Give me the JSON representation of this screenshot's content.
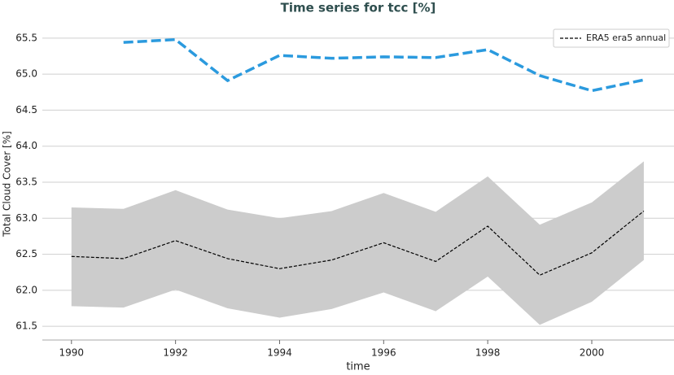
{
  "chart_data": {
    "type": "line",
    "title": "Time series for tcc [%]",
    "x_label": "time",
    "y_label": "Total Cloud Cover [%]",
    "x": [
      1990,
      1991,
      1992,
      1993,
      1994,
      1995,
      1996,
      1997,
      1998,
      1999,
      2000,
      2001
    ],
    "series": [
      {
        "name": "ERA5 era5 annual",
        "color": "#000000",
        "dash": "4 2",
        "width": 1.2,
        "values": [
          62.47,
          62.44,
          62.69,
          62.44,
          62.3,
          62.42,
          62.66,
          62.4,
          62.89,
          62.21,
          62.52,
          63.1
        ]
      },
      {
        "color": "#2b9ade",
        "dash": "12 5",
        "width": 3.5,
        "values": [
          null,
          65.44,
          65.48,
          64.91,
          65.26,
          65.22,
          65.24,
          65.23,
          65.34,
          64.98,
          64.77,
          64.92
        ]
      }
    ],
    "band": {
      "color": "#cccccc",
      "upper": [
        63.15,
        63.13,
        63.39,
        63.12,
        63.0,
        63.1,
        63.35,
        63.09,
        63.58,
        62.91,
        63.22,
        63.79
      ],
      "lower": [
        61.78,
        61.76,
        62.01,
        61.75,
        61.62,
        61.74,
        61.97,
        61.71,
        62.19,
        61.52,
        61.84,
        62.42
      ]
    },
    "xlim": [
      1989.44,
      2001.58
    ],
    "ylim": [
      61.31,
      65.6
    ],
    "xticks": [
      1990,
      1992,
      1994,
      1996,
      1998,
      2000
    ],
    "yticks": [
      {
        "value": 61.5,
        "label": "61.5"
      },
      {
        "value": 62,
        "label": "62.0"
      },
      {
        "value": 62.5,
        "label": "62.5"
      },
      {
        "value": 63,
        "label": "63.0"
      },
      {
        "value": 63.5,
        "label": "63.5"
      },
      {
        "value": 64,
        "label": "64.0"
      },
      {
        "value": 64.5,
        "label": "64.5"
      },
      {
        "value": 65,
        "label": "65.0"
      },
      {
        "value": 65.5,
        "label": "65.5"
      }
    ],
    "grid": true,
    "legend": "upper right"
  }
}
